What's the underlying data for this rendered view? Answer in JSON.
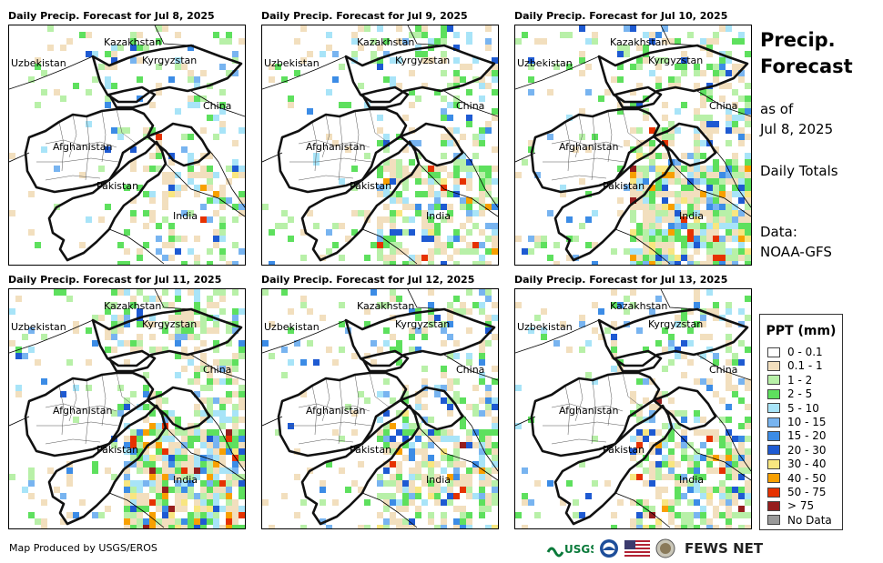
{
  "panels": [
    {
      "title": "Daily Precip. Forecast for Jul 8, 2025",
      "precip_level": "low"
    },
    {
      "title": "Daily Precip. Forecast for Jul 9, 2025",
      "precip_level": "medium"
    },
    {
      "title": "Daily Precip. Forecast for Jul 10, 2025",
      "precip_level": "high"
    },
    {
      "title": "Daily Precip. Forecast for Jul 11, 2025",
      "precip_level": "high"
    },
    {
      "title": "Daily Precip. Forecast for Jul 12, 2025",
      "precip_level": "medium"
    },
    {
      "title": "Daily Precip. Forecast for Jul 13, 2025",
      "precip_level": "medium"
    }
  ],
  "map_labels": {
    "kazakhstan": "Kazakhstan",
    "uzbekistan": "Uzbekistan",
    "kyrgyzstan": "Kyrgyzstan",
    "china": "China",
    "afghanistan": "Afghanistan",
    "pakistan": "Pakistan",
    "india": "India"
  },
  "side": {
    "title": "Precip. Forecast",
    "as_of_label": "as of",
    "as_of_date": "Jul 8, 2025",
    "totals": "Daily Totals",
    "data_label": "Data:",
    "data_source": "NOAA-GFS"
  },
  "legend": {
    "title": "PPT (mm)",
    "items": [
      {
        "label": "0 - 0.1",
        "color": "#ffffff"
      },
      {
        "label": "0.1 - 1",
        "color": "#f2dfbe"
      },
      {
        "label": "1 - 2",
        "color": "#b8f0a8"
      },
      {
        "label": "2 - 5",
        "color": "#5ee05e"
      },
      {
        "label": "5 - 10",
        "color": "#a8e4f8"
      },
      {
        "label": "10 - 15",
        "color": "#78b4f0"
      },
      {
        "label": "15 - 20",
        "color": "#3c8ce6"
      },
      {
        "label": "20 - 30",
        "color": "#1e5ad2"
      },
      {
        "label": "30 - 40",
        "color": "#f8e680"
      },
      {
        "label": "40 - 50",
        "color": "#f8a000"
      },
      {
        "label": "50 - 75",
        "color": "#e63200"
      },
      {
        "label": "> 75",
        "color": "#961e1e"
      },
      {
        "label": "No Data",
        "color": "#9a9a9a"
      }
    ]
  },
  "credit": "Map Produced by USGS/EROS",
  "logos": {
    "usgs": "USGS",
    "fews": "FEWS NET"
  }
}
